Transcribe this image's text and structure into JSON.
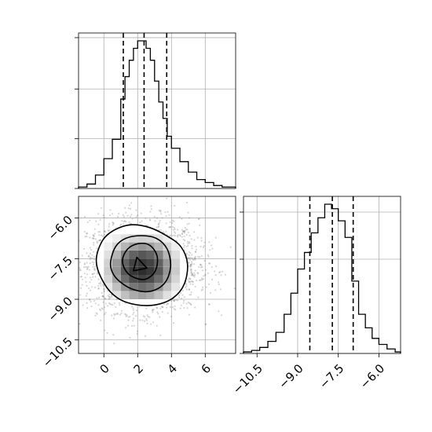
{
  "chart_data": {
    "type": "corner",
    "grid": true,
    "parameters": [
      {
        "key": "p1",
        "xlim": [
          -1.5,
          7.8
        ],
        "ticks": [
          0,
          2,
          4,
          6
        ],
        "tick_labels": [
          "0",
          "2",
          "4",
          "6"
        ],
        "quantiles": [
          1.15,
          2.38,
          3.72
        ],
        "hist": {
          "bin_edges": [
            -1.5,
            -1.0,
            -0.5,
            0.0,
            0.5,
            1.0,
            1.25,
            1.5,
            1.75,
            2.0,
            2.25,
            2.5,
            2.75,
            3.0,
            3.25,
            3.5,
            3.75,
            4.0,
            4.5,
            5.0,
            5.5,
            6.0,
            6.5,
            7.0,
            7.8
          ],
          "counts": [
            0.01,
            0.03,
            0.09,
            0.2,
            0.33,
            0.6,
            0.75,
            0.86,
            0.94,
            0.99,
            0.99,
            0.94,
            0.86,
            0.72,
            0.58,
            0.47,
            0.35,
            0.27,
            0.18,
            0.11,
            0.06,
            0.04,
            0.02,
            0.01
          ]
        }
      },
      {
        "key": "p2",
        "xlim": [
          -11.0,
          -5.2
        ],
        "ticks": [
          -10.5,
          -9.0,
          -7.5,
          -6.0
        ],
        "tick_labels": [
          "−10.5",
          "−9.0",
          "−7.5",
          "−6.0"
        ],
        "quantiles": [
          -8.55,
          -7.72,
          -6.95
        ],
        "hist": {
          "bin_edges": [
            -11.0,
            -10.7,
            -10.4,
            -10.1,
            -9.8,
            -9.5,
            -9.25,
            -9.0,
            -8.75,
            -8.5,
            -8.25,
            -8.0,
            -7.75,
            -7.5,
            -7.25,
            -7.0,
            -6.75,
            -6.5,
            -6.25,
            -6.0,
            -5.7,
            -5.4,
            -5.2
          ],
          "counts": [
            0.01,
            0.02,
            0.04,
            0.08,
            0.14,
            0.26,
            0.4,
            0.56,
            0.67,
            0.8,
            0.9,
            0.99,
            0.96,
            0.88,
            0.77,
            0.48,
            0.26,
            0.17,
            0.1,
            0.06,
            0.03,
            0.01
          ]
        }
      }
    ],
    "joint": {
      "x_param": "p1",
      "y_param": "p2",
      "x_center": 2.3,
      "y_center": -7.75,
      "x_sigma": 1.65,
      "y_sigma": 0.85,
      "density_grid": {
        "x_edges": [
          0.0,
          0.5,
          1.0,
          1.5,
          2.0,
          2.5,
          3.0,
          3.5,
          4.0,
          4.5
        ],
        "y_edges": [
          -9.0,
          -8.7,
          -8.4,
          -8.1,
          -7.8,
          -7.5,
          -7.2,
          -6.9,
          -6.6
        ],
        "values": [
          [
            0.05,
            0.15,
            0.3,
            0.4,
            0.45,
            0.4,
            0.3,
            0.15,
            0.05
          ],
          [
            0.12,
            0.3,
            0.5,
            0.65,
            0.7,
            0.65,
            0.5,
            0.3,
            0.12
          ],
          [
            0.2,
            0.45,
            0.7,
            0.85,
            0.9,
            0.85,
            0.7,
            0.45,
            0.2
          ],
          [
            0.25,
            0.5,
            0.8,
            0.95,
            1.0,
            0.95,
            0.8,
            0.5,
            0.25
          ],
          [
            0.22,
            0.48,
            0.75,
            0.9,
            0.95,
            0.9,
            0.75,
            0.48,
            0.22
          ],
          [
            0.15,
            0.35,
            0.6,
            0.75,
            0.8,
            0.75,
            0.6,
            0.35,
            0.15
          ],
          [
            0.08,
            0.2,
            0.35,
            0.45,
            0.5,
            0.45,
            0.35,
            0.2,
            0.08
          ],
          [
            0.03,
            0.08,
            0.15,
            0.2,
            0.22,
            0.2,
            0.15,
            0.08,
            0.03
          ]
        ]
      },
      "contours": [
        {
          "level": "outer",
          "points": [
            [
              -0.45,
              -7.6
            ],
            [
              -0.1,
              -6.85
            ],
            [
              0.6,
              -6.45
            ],
            [
              1.6,
              -6.25
            ],
            [
              2.7,
              -6.35
            ],
            [
              3.7,
              -6.65
            ],
            [
              4.55,
              -7.05
            ],
            [
              4.95,
              -7.7
            ],
            [
              4.75,
              -8.45
            ],
            [
              4.1,
              -8.95
            ],
            [
              3.1,
              -9.2
            ],
            [
              1.9,
              -9.2
            ],
            [
              0.8,
              -8.95
            ],
            [
              0.0,
              -8.4
            ]
          ]
        },
        {
          "level": "middle",
          "points": [
            [
              0.4,
              -7.6
            ],
            [
              0.7,
              -7.05
            ],
            [
              1.3,
              -6.75
            ],
            [
              2.2,
              -6.65
            ],
            [
              3.1,
              -6.75
            ],
            [
              3.75,
              -7.15
            ],
            [
              3.95,
              -7.8
            ],
            [
              3.6,
              -8.4
            ],
            [
              2.8,
              -8.7
            ],
            [
              1.8,
              -8.65
            ],
            [
              0.95,
              -8.35
            ],
            [
              0.5,
              -8.0
            ]
          ]
        },
        {
          "level": "inner",
          "points": [
            [
              1.1,
              -7.55
            ],
            [
              1.4,
              -7.15
            ],
            [
              2.0,
              -6.95
            ],
            [
              2.7,
              -7.0
            ],
            [
              3.15,
              -7.4
            ],
            [
              3.05,
              -7.95
            ],
            [
              2.5,
              -8.25
            ],
            [
              1.8,
              -8.2
            ],
            [
              1.3,
              -7.95
            ]
          ]
        },
        {
          "level": "core",
          "points": [
            [
              1.75,
              -7.95
            ],
            [
              1.95,
              -7.45
            ],
            [
              2.55,
              -7.85
            ]
          ]
        }
      ],
      "y_ticks": [
        -6.0,
        -7.5,
        -9.0,
        -10.5
      ],
      "y_tick_labels": [
        "−6.0",
        "−7.5",
        "−9.0",
        "−10.5"
      ]
    }
  }
}
